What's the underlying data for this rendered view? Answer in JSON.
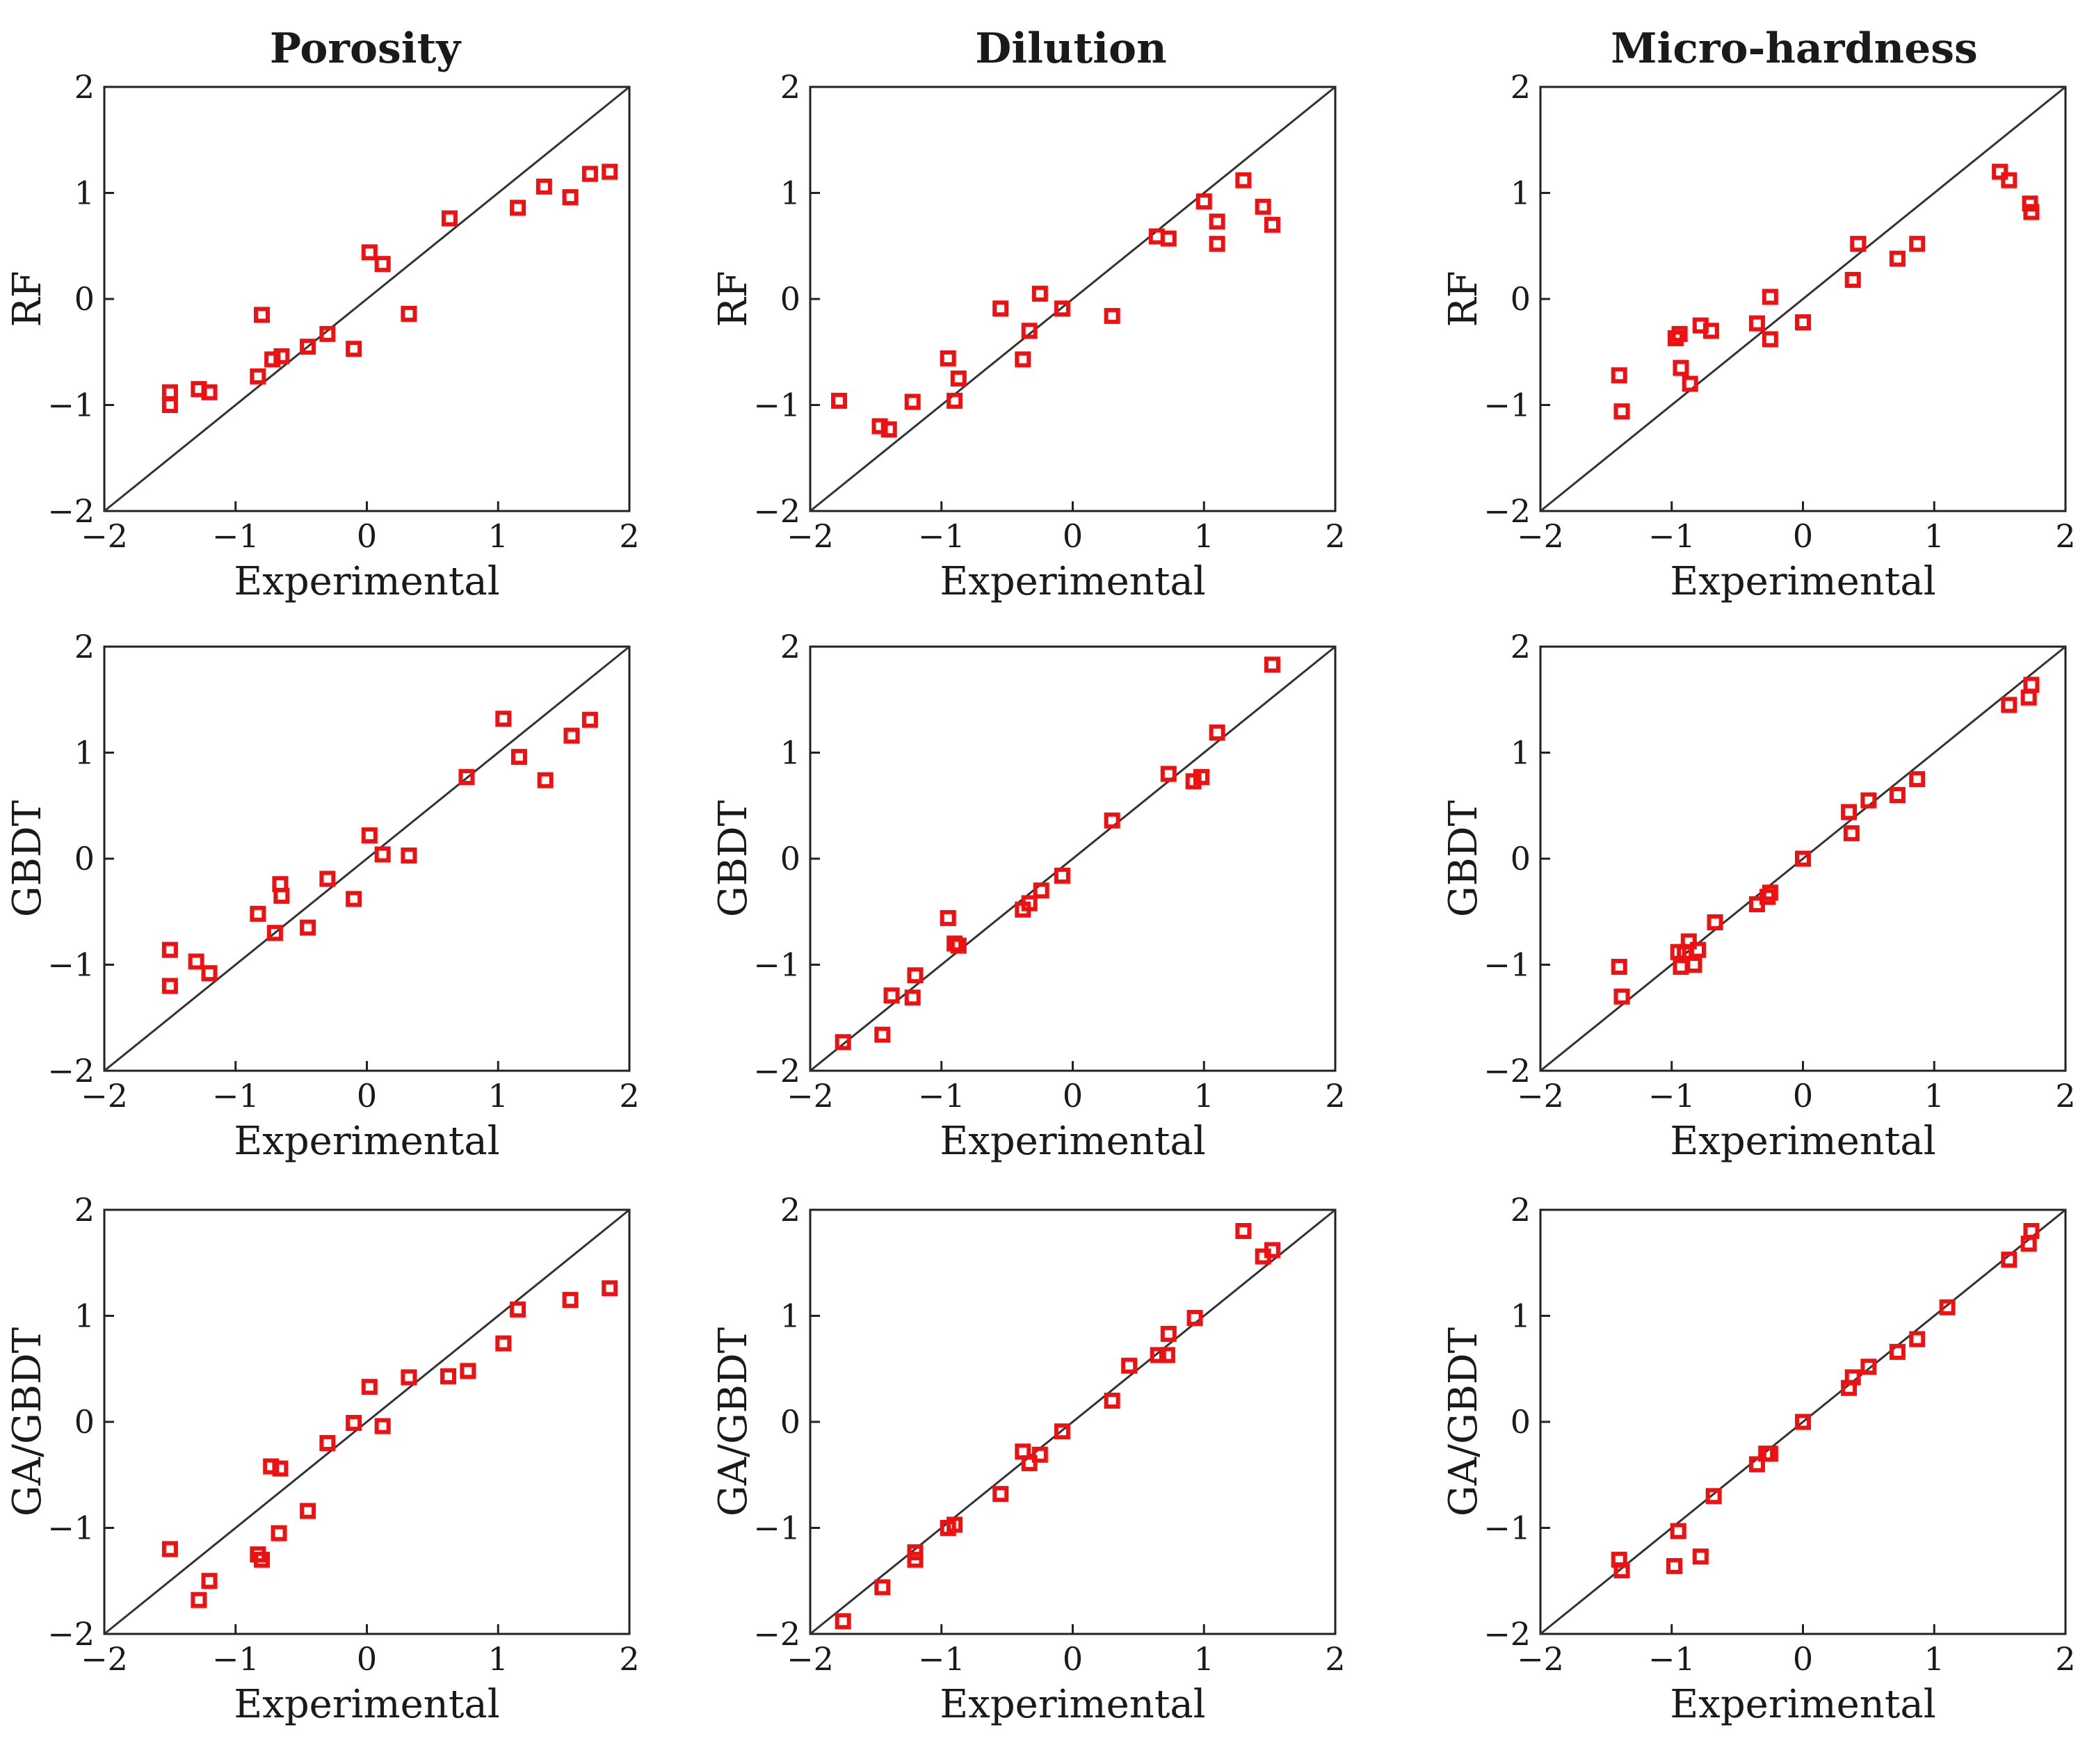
{
  "column_titles": [
    "Porosity",
    "Dilution",
    "Micro-hardness"
  ],
  "chart_data": [
    {
      "type": "scatter",
      "row": 0,
      "col": 0,
      "title": "Porosity",
      "xlabel": "Experimental",
      "ylabel": "RF",
      "xlim": [
        -2,
        2
      ],
      "ylim": [
        -2,
        2
      ],
      "xticks": [
        -2,
        -1,
        0,
        1,
        2
      ],
      "yticks": [
        -2,
        -1,
        0,
        1,
        2
      ],
      "reference_line": "y=x",
      "x": [
        -1.5,
        -1.5,
        -1.28,
        -1.2,
        -0.83,
        -0.8,
        -0.72,
        -0.65,
        -0.45,
        -0.3,
        -0.1,
        0.02,
        0.12,
        0.32,
        0.63,
        1.15,
        1.35,
        1.55,
        1.7,
        1.85
      ],
      "y": [
        -0.88,
        -1.0,
        -0.85,
        -0.88,
        -0.73,
        -0.15,
        -0.57,
        -0.54,
        -0.45,
        -0.33,
        -0.47,
        0.44,
        0.33,
        -0.14,
        0.76,
        0.86,
        1.06,
        0.96,
        1.18,
        1.2
      ]
    },
    {
      "type": "scatter",
      "row": 0,
      "col": 1,
      "title": "Dilution",
      "xlabel": "Experimental",
      "ylabel": "RF",
      "xlim": [
        -2,
        2
      ],
      "ylim": [
        -2,
        2
      ],
      "xticks": [
        -2,
        -1,
        0,
        1,
        2
      ],
      "yticks": [
        -2,
        -1,
        0,
        1,
        2
      ],
      "reference_line": "y=x",
      "x": [
        -1.78,
        -1.47,
        -1.4,
        -1.22,
        -0.95,
        -0.9,
        -0.87,
        -0.55,
        -0.38,
        -0.33,
        -0.25,
        -0.08,
        0.3,
        0.64,
        0.73,
        1.0,
        1.1,
        1.1,
        1.3,
        1.45,
        1.52
      ],
      "y": [
        -0.96,
        -1.2,
        -1.23,
        -0.97,
        -0.56,
        -0.96,
        -0.75,
        -0.09,
        -0.57,
        -0.3,
        0.05,
        -0.09,
        -0.16,
        0.59,
        0.57,
        0.92,
        0.73,
        0.52,
        1.12,
        0.87,
        0.7
      ]
    },
    {
      "type": "scatter",
      "row": 0,
      "col": 2,
      "title": "Micro-hardness",
      "xlabel": "Experimental",
      "ylabel": "RF",
      "xlim": [
        -2,
        2
      ],
      "ylim": [
        -2,
        2
      ],
      "xticks": [
        -2,
        -1,
        0,
        1,
        2
      ],
      "yticks": [
        -2,
        -1,
        0,
        1,
        2
      ],
      "reference_line": "y=x",
      "x": [
        -1.4,
        -1.38,
        -0.97,
        -0.94,
        -0.93,
        -0.86,
        -0.78,
        -0.7,
        -0.35,
        -0.25,
        -0.25,
        0.0,
        0.38,
        0.42,
        0.72,
        0.87,
        1.5,
        1.57,
        1.73,
        1.74
      ],
      "y": [
        -0.72,
        -1.06,
        -0.37,
        -0.33,
        -0.65,
        -0.8,
        -0.25,
        -0.3,
        -0.23,
        0.02,
        -0.38,
        -0.22,
        0.18,
        0.52,
        0.38,
        0.52,
        1.2,
        1.12,
        0.9,
        0.82
      ]
    },
    {
      "type": "scatter",
      "row": 1,
      "col": 0,
      "title": "",
      "xlabel": "Experimental",
      "ylabel": "GBDT",
      "xlim": [
        -2,
        2
      ],
      "ylim": [
        -2,
        2
      ],
      "xticks": [
        -2,
        -1,
        0,
        1,
        2
      ],
      "yticks": [
        -2,
        -1,
        0,
        1,
        2
      ],
      "reference_line": "y=x",
      "x": [
        -1.5,
        -1.5,
        -1.3,
        -1.2,
        -0.83,
        -0.7,
        -0.66,
        -0.65,
        -0.45,
        -0.3,
        -0.1,
        0.02,
        0.12,
        0.32,
        0.76,
        1.04,
        1.16,
        1.36,
        1.56,
        1.7
      ],
      "y": [
        -0.86,
        -1.2,
        -0.97,
        -1.08,
        -0.52,
        -0.7,
        -0.24,
        -0.35,
        -0.65,
        -0.19,
        -0.38,
        0.22,
        0.04,
        0.03,
        0.77,
        1.32,
        0.96,
        0.74,
        1.16,
        1.31
      ]
    },
    {
      "type": "scatter",
      "row": 1,
      "col": 1,
      "title": "",
      "xlabel": "Experimental",
      "ylabel": "GBDT",
      "xlim": [
        -2,
        2
      ],
      "ylim": [
        -2,
        2
      ],
      "xticks": [
        -2,
        -1,
        0,
        1,
        2
      ],
      "yticks": [
        -2,
        -1,
        0,
        1,
        2
      ],
      "reference_line": "y=x",
      "x": [
        -1.75,
        -1.45,
        -1.38,
        -1.22,
        -1.2,
        -0.95,
        -0.9,
        -0.87,
        -0.38,
        -0.33,
        -0.24,
        -0.08,
        0.3,
        0.73,
        0.92,
        0.98,
        1.1,
        1.52
      ],
      "y": [
        -1.73,
        -1.66,
        -1.29,
        -1.31,
        -1.1,
        -0.56,
        -0.8,
        -0.82,
        -0.48,
        -0.42,
        -0.3,
        -0.16,
        0.36,
        0.8,
        0.73,
        0.77,
        1.19,
        1.83
      ]
    },
    {
      "type": "scatter",
      "row": 1,
      "col": 2,
      "title": "Micro-hardness",
      "xlabel": "Experimental",
      "ylabel": "GBDT",
      "xlim": [
        -2,
        2
      ],
      "ylim": [
        -2,
        2
      ],
      "xticks": [
        -2,
        -1,
        0,
        1,
        2
      ],
      "yticks": [
        -2,
        -1,
        0,
        1,
        2
      ],
      "reference_line": "y=x",
      "x": [
        -1.4,
        -1.38,
        -0.95,
        -0.93,
        -0.9,
        -0.87,
        -0.83,
        -0.8,
        -0.67,
        -0.35,
        -0.27,
        -0.25,
        0.0,
        0.35,
        0.37,
        0.5,
        0.72,
        0.87,
        1.57,
        1.72,
        1.74
      ],
      "y": [
        -1.02,
        -1.3,
        -0.88,
        -1.02,
        -0.88,
        -0.78,
        -1.0,
        -0.86,
        -0.6,
        -0.43,
        -0.36,
        -0.32,
        0.0,
        0.44,
        0.24,
        0.55,
        0.6,
        0.75,
        1.45,
        1.52,
        1.64
      ]
    },
    {
      "type": "scatter",
      "row": 2,
      "col": 0,
      "title": "",
      "xlabel": "Experimental",
      "ylabel": "GA/GBDT",
      "xlim": [
        -2,
        2
      ],
      "ylim": [
        -2,
        2
      ],
      "xticks": [
        -2,
        -1,
        0,
        1,
        2
      ],
      "yticks": [
        -2,
        -1,
        0,
        1,
        2
      ],
      "reference_line": "y=x",
      "x": [
        -1.5,
        -1.28,
        -1.2,
        -0.83,
        -0.8,
        -0.73,
        -0.66,
        -0.67,
        -0.45,
        -0.3,
        -0.1,
        0.02,
        0.12,
        0.32,
        0.62,
        0.77,
        1.04,
        1.15,
        1.55,
        1.85
      ],
      "y": [
        -1.2,
        -1.68,
        -1.5,
        -1.25,
        -1.3,
        -0.42,
        -0.44,
        -1.05,
        -0.84,
        -0.2,
        -0.01,
        0.33,
        -0.04,
        0.42,
        0.43,
        0.48,
        0.74,
        1.06,
        1.15,
        1.26
      ]
    },
    {
      "type": "scatter",
      "row": 2,
      "col": 1,
      "title": "",
      "xlabel": "Experimental",
      "ylabel": "GA/GBDT",
      "xlim": [
        -2,
        2
      ],
      "ylim": [
        -2,
        2
      ],
      "xticks": [
        -2,
        -1,
        0,
        1,
        2
      ],
      "yticks": [
        -2,
        -1,
        0,
        1,
        2
      ],
      "reference_line": "y=x",
      "x": [
        -1.75,
        -1.45,
        -1.2,
        -1.2,
        -0.95,
        -0.9,
        -0.55,
        -0.38,
        -0.33,
        -0.25,
        -0.08,
        0.3,
        0.43,
        0.65,
        0.72,
        0.73,
        0.93,
        1.3,
        1.45,
        1.52
      ],
      "y": [
        -1.88,
        -1.56,
        -1.23,
        -1.3,
        -1.0,
        -0.97,
        -0.68,
        -0.28,
        -0.39,
        -0.31,
        -0.09,
        0.2,
        0.53,
        0.63,
        0.63,
        0.83,
        0.98,
        1.8,
        1.56,
        1.62
      ]
    },
    {
      "type": "scatter",
      "row": 2,
      "col": 2,
      "title": "",
      "xlabel": "Experimental",
      "ylabel": "GA/GBDT",
      "xlim": [
        -2,
        2
      ],
      "ylim": [
        -2,
        2
      ],
      "xticks": [
        -2,
        -1,
        0,
        1,
        2
      ],
      "yticks": [
        -2,
        -1,
        0,
        1,
        2
      ],
      "reference_line": "y=x",
      "x": [
        -1.4,
        -1.38,
        -0.98,
        -0.95,
        -0.78,
        -0.68,
        -0.35,
        -0.28,
        -0.25,
        0.0,
        0.35,
        0.38,
        0.5,
        0.72,
        0.87,
        1.1,
        1.57,
        1.72,
        1.74
      ],
      "y": [
        -1.3,
        -1.4,
        -1.36,
        -1.03,
        -1.27,
        -0.7,
        -0.4,
        -0.3,
        -0.3,
        0.0,
        0.32,
        0.42,
        0.52,
        0.66,
        0.78,
        1.08,
        1.53,
        1.68,
        1.8
      ]
    }
  ]
}
